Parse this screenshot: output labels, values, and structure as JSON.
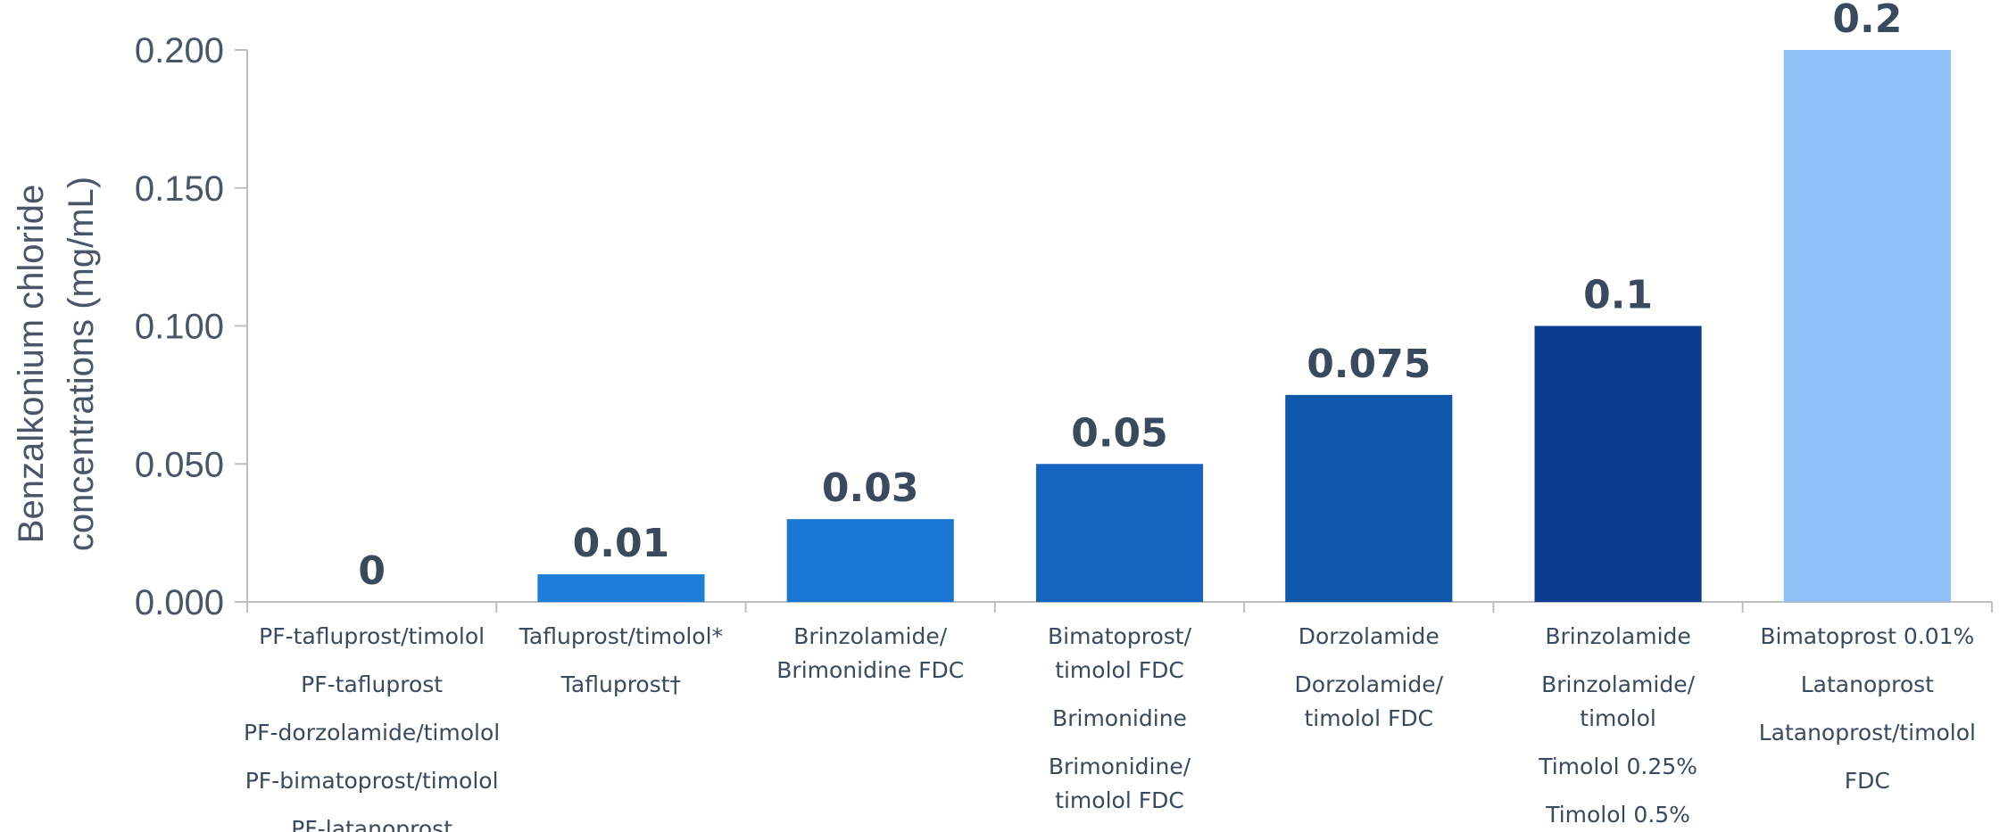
{
  "chart_data": {
    "type": "bar",
    "ylabel_lines": [
      "Benzalkonium chloride",
      "concentrations (mg/mL)"
    ],
    "ylim": [
      0,
      0.2
    ],
    "yticks": [
      "0.000",
      "0.050",
      "0.100",
      "0.150",
      "0.200"
    ],
    "ytick_values": [
      0,
      0.05,
      0.1,
      0.15,
      0.2
    ],
    "values": [
      0,
      0.01,
      0.03,
      0.05,
      0.075,
      0.1,
      0.2
    ],
    "data_labels": [
      "0",
      "0.01",
      "0.03",
      "0.05",
      "0.075",
      "0.1",
      "0.2"
    ],
    "colors": [
      "#1c7ed6",
      "#1c7ed6",
      "#1a76d2",
      "#1565c0",
      "#0f57a8",
      "#0a3d8f",
      "#90bff5"
    ],
    "categories": [
      [
        "PF-tafluprost/timolol",
        "PF-tafluprost",
        "PF-dorzolamide/timolol",
        "PF-bimatoprost/timolol",
        "PF-latanoprost"
      ],
      [
        "Tafluprost/timolol*",
        "Tafluprost†"
      ],
      [
        "Brinzolamide/",
        "Brimonidine FDC"
      ],
      [
        "Bimatoprost/",
        "timolol FDC",
        "Brimonidine",
        "Brimonidine/",
        "timolol FDC"
      ],
      [
        "Dorzolamide",
        "Dorzolamide/",
        "timolol FDC"
      ],
      [
        "Brinzolamide",
        "Brinzolamide/",
        "timolol",
        "Timolol 0.25%",
        "Timolol 0.5%"
      ],
      [
        "Bimatoprost 0.01%",
        "Latanoprost",
        "Latanoprost/timolol",
        "FDC"
      ]
    ]
  }
}
